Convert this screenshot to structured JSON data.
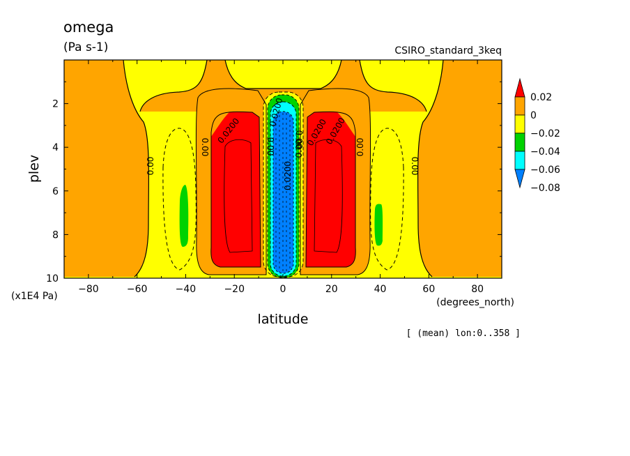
{
  "figure": {
    "variable": "omega",
    "units": "(Pa s-1)",
    "dataset": "CSIRO_standard_3keq",
    "footnote": "[ (mean) lon:0..358 ]"
  },
  "chart_data": {
    "type": "heatmap",
    "style": "filled contour plot (latitude-pressure cross section)",
    "xlabel": "latitude",
    "xunits": "(degrees_north)",
    "ylabel": "plev",
    "yunits": "(x1E4 Pa)",
    "xlim": [
      -90,
      90
    ],
    "ylim": [
      10,
      0
    ],
    "x_ticks": [
      -80,
      -60,
      -40,
      -20,
      0,
      20,
      40,
      60,
      80
    ],
    "x_tick_labels": [
      "−80",
      "−60",
      "−40",
      "−20",
      "0",
      "20",
      "40",
      "60",
      "80"
    ],
    "y_ticks": [
      2,
      4,
      6,
      8,
      10
    ],
    "y_tick_labels": [
      "2",
      "4",
      "6",
      "8",
      "10"
    ],
    "colorbar": {
      "levels": [
        0.02,
        0,
        -0.02,
        -0.04,
        -0.06,
        -0.08
      ],
      "labels": [
        "0.02",
        "0",
        "−0.02",
        "−0.04",
        "−0.06",
        "−0.08"
      ],
      "colors": [
        "#ff0000",
        "#ffa500",
        "#ffff00",
        "#00d200",
        "#00ffff",
        "#0080ff"
      ],
      "open_ends": "triangles at both ends"
    },
    "contour_labels": [
      "0.00",
      "0.00",
      "0.0200",
      "0.00",
      "0.0200",
      "0.0200",
      "0.00",
      "0.00",
      "0.0200",
      "0.0200",
      "0.00",
      "0.00"
    ],
    "regions": [
      {
        "band": "0 to 0.02",
        "color": "#ffa500",
        "where": "poleward of about 45° in both hemispheres and the upper troposphere above 30°"
      },
      {
        "band": "above 0.02",
        "color": "#ff0000",
        "where": "subtropical descent cores near 10–30° N and S, about 2.5 to 9.5 (x1E4 Pa)"
      },
      {
        "band": "below -0.08",
        "color": "#0080ff",
        "where": "equatorial ascent core between about -5° and 5° through the whole column"
      },
      {
        "band": "-0.04 to -0.02",
        "color": "#00d200",
        "where": "narrow mid-latitude tongues near 40° N and S, about 6.5 to 8.5 (x1E4 Pa)"
      }
    ]
  }
}
